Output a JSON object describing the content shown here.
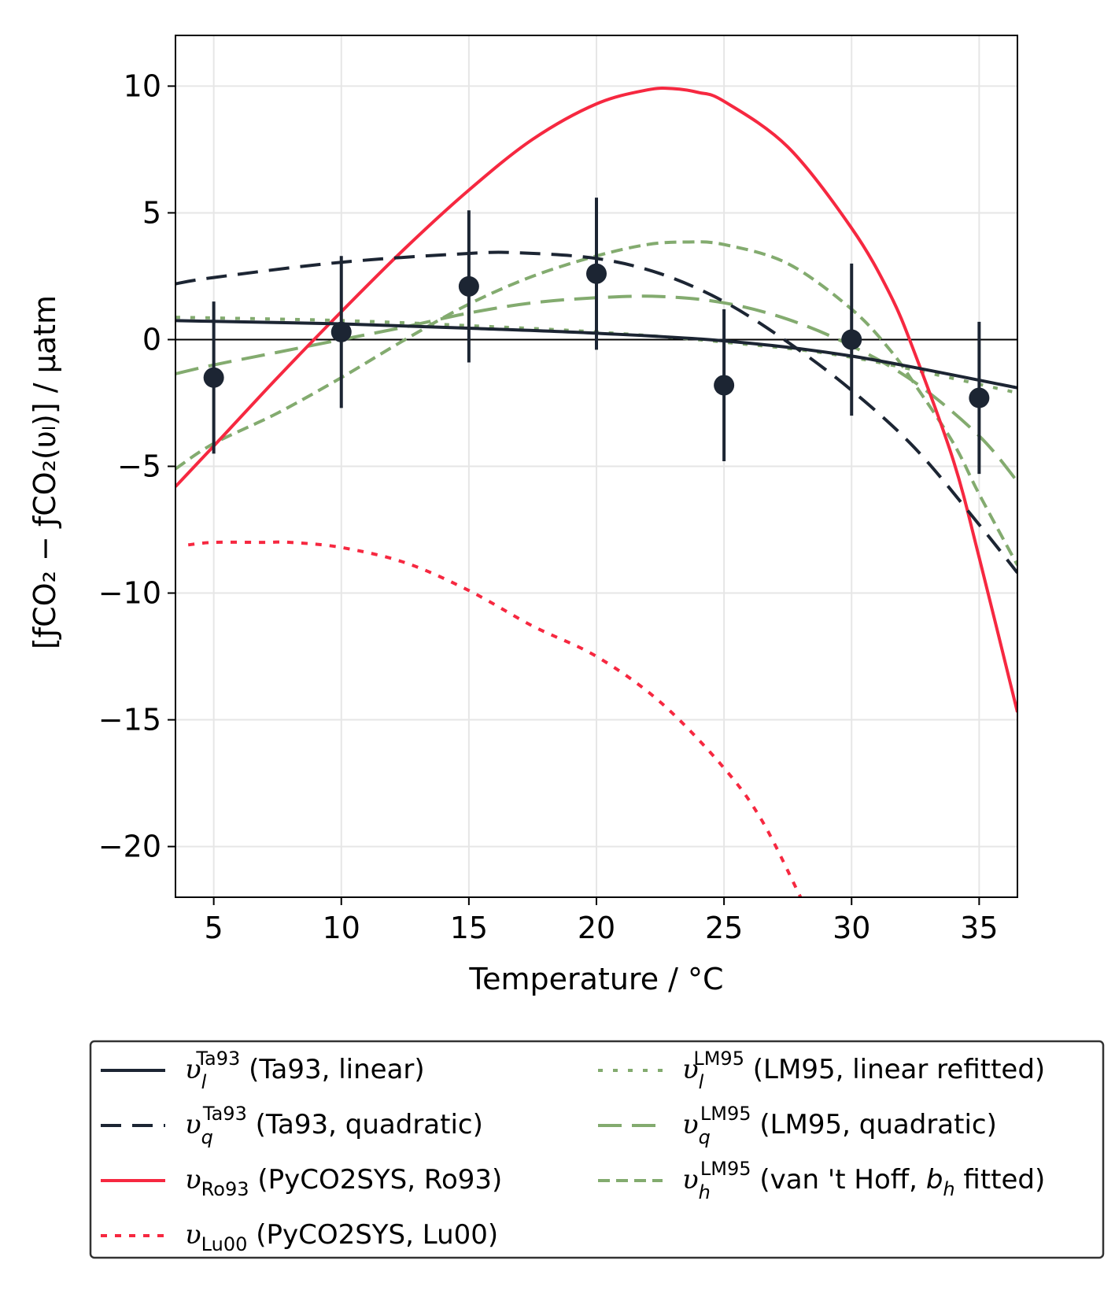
{
  "chart_data": {
    "type": "line",
    "xlabel": "Temperature / °C",
    "ylabel": "[ƒCO₂ − ƒCO₂(υₗ)] / µatm",
    "xlim": [
      3.5,
      36.5
    ],
    "ylim": [
      -22,
      12
    ],
    "x_ticks": [
      "5",
      "10",
      "15",
      "20",
      "25",
      "30",
      "35"
    ],
    "x_tick_values": [
      5,
      10,
      15,
      20,
      25,
      30,
      35
    ],
    "y_ticks": [
      "−20",
      "−15",
      "−10",
      "−5",
      "0",
      "5",
      "10"
    ],
    "y_tick_values": [
      -20,
      -15,
      -10,
      -5,
      0,
      5,
      10
    ],
    "grid": true,
    "legend_position": "below",
    "observations": {
      "x": [
        5,
        10,
        15,
        20,
        25,
        30,
        35
      ],
      "y": [
        -1.5,
        0.3,
        2.1,
        2.6,
        -1.8,
        0.0,
        -2.3
      ],
      "err": [
        3.0,
        3.0,
        3.0,
        3.0,
        3.0,
        3.0,
        3.0
      ],
      "color": "#1c2533"
    },
    "series": [
      {
        "key": "ta93_linear",
        "name": "υₗ^Ta93 (Ta93, linear)",
        "sym": "υ",
        "sub": "l",
        "sub_italic": true,
        "sup": "Ta93",
        "desc": " (Ta93, linear)",
        "color": "#1c2533",
        "dash": "solid",
        "width": 4,
        "x": [
          3.5,
          5,
          10,
          15,
          20,
          25,
          30,
          36.5
        ],
        "y": [
          0.75,
          0.72,
          0.62,
          0.45,
          0.25,
          -0.05,
          -0.65,
          -1.9
        ]
      },
      {
        "key": "ta93_quadratic",
        "name": "υ_q^Ta93 (Ta93, quadratic)",
        "sym": "υ",
        "sub": "q",
        "sub_italic": true,
        "sup": "Ta93",
        "desc": " (Ta93, quadratic)",
        "color": "#1c2533",
        "dash": "dashed",
        "width": 4,
        "x": [
          3.5,
          5,
          10,
          15,
          17,
          20,
          22.5,
          25,
          27.5,
          30,
          32.5,
          35,
          36.5
        ],
        "y": [
          2.2,
          2.45,
          3.05,
          3.4,
          3.42,
          3.2,
          2.6,
          1.5,
          -0.1,
          -2.0,
          -4.3,
          -7.3,
          -9.2
        ]
      },
      {
        "key": "ro93",
        "name": "υ_Ro93 (PyCO2SYS, Ro93)",
        "sym": "υ",
        "sub": "Ro93",
        "sub_italic": false,
        "sup": "",
        "desc": " (PyCO2SYS, Ro93)",
        "color": "#f62840",
        "dash": "solid",
        "width": 4,
        "x": [
          3.5,
          5,
          7.5,
          10,
          12.5,
          15,
          17.5,
          20,
          22,
          23,
          24,
          25,
          27.5,
          30,
          31.5,
          32.5,
          34,
          35,
          36.5
        ],
        "y": [
          -5.8,
          -4.2,
          -1.5,
          1.1,
          3.6,
          5.9,
          7.9,
          9.3,
          9.85,
          9.9,
          9.75,
          9.4,
          7.6,
          4.4,
          1.8,
          -0.6,
          -4.8,
          -8.6,
          -14.7
        ]
      },
      {
        "key": "lu00",
        "name": "υ_Lu00 (PyCO2SYS, Lu00)",
        "sym": "υ",
        "sub": "Lu00",
        "sub_italic": false,
        "sup": "",
        "desc": " (PyCO2SYS, Lu00)",
        "color": "#f62840",
        "dash": "dotted",
        "width": 4,
        "x": [
          4,
          5,
          7,
          8,
          10,
          12.5,
          15,
          17.5,
          20,
          22.5,
          25,
          26.5,
          28
        ],
        "y": [
          -8.1,
          -8.0,
          -8.0,
          -8.0,
          -8.2,
          -8.8,
          -9.9,
          -11.3,
          -12.5,
          -14.3,
          -16.9,
          -19.0,
          -22.0
        ]
      },
      {
        "key": "lm95_linear",
        "name": "υₗ^LM95 (LM95, linear refitted)",
        "sym": "υ",
        "sub": "l",
        "sub_italic": true,
        "sup": "LM95",
        "desc": " (LM95, linear refitted)",
        "color": "#83ab6f",
        "dash": "loosedot",
        "width": 4,
        "x": [
          3.5,
          10,
          15,
          20,
          25,
          30,
          36.5
        ],
        "y": [
          0.88,
          0.75,
          0.55,
          0.3,
          -0.1,
          -0.7,
          -2.1
        ]
      },
      {
        "key": "lm95_quadratic",
        "name": "υ_q^LM95 (LM95, quadratic)",
        "sym": "υ",
        "sub": "q",
        "sub_italic": true,
        "sup": "LM95",
        "desc": " (LM95, quadratic)",
        "color": "#83ab6f",
        "dash": "longdash",
        "width": 4,
        "x": [
          3.5,
          5,
          7.5,
          10,
          12.5,
          15,
          17.5,
          20,
          22.5,
          25,
          27.5,
          30,
          32.5,
          35,
          36.5
        ],
        "y": [
          -1.35,
          -1.0,
          -0.5,
          0.0,
          0.5,
          1.05,
          1.45,
          1.65,
          1.7,
          1.45,
          0.8,
          -0.25,
          -1.7,
          -3.8,
          -5.6
        ]
      },
      {
        "key": "lm95_vanthoff",
        "name": "υ_h^LM95 (van 't Hoff, b_h fitted)",
        "sym": "υ",
        "sub": "h",
        "sub_italic": true,
        "sup": "LM95",
        "desc1": " (van 't Hoff, ",
        "desc_ital": "b",
        "desc_sub": "h",
        "desc2": " fitted)",
        "color": "#83ab6f",
        "dash": "shortdash",
        "width": 4,
        "x": [
          3.5,
          5,
          7.5,
          10,
          12.5,
          15,
          17.5,
          20,
          22,
          23.5,
          25,
          27.5,
          30,
          31.5,
          32.5,
          34,
          35,
          36.5
        ],
        "y": [
          -5.1,
          -4.1,
          -2.9,
          -1.5,
          0.0,
          1.4,
          2.5,
          3.3,
          3.75,
          3.85,
          3.75,
          3.0,
          1.2,
          -0.4,
          -1.8,
          -4.1,
          -6.1,
          -8.9
        ]
      }
    ]
  }
}
